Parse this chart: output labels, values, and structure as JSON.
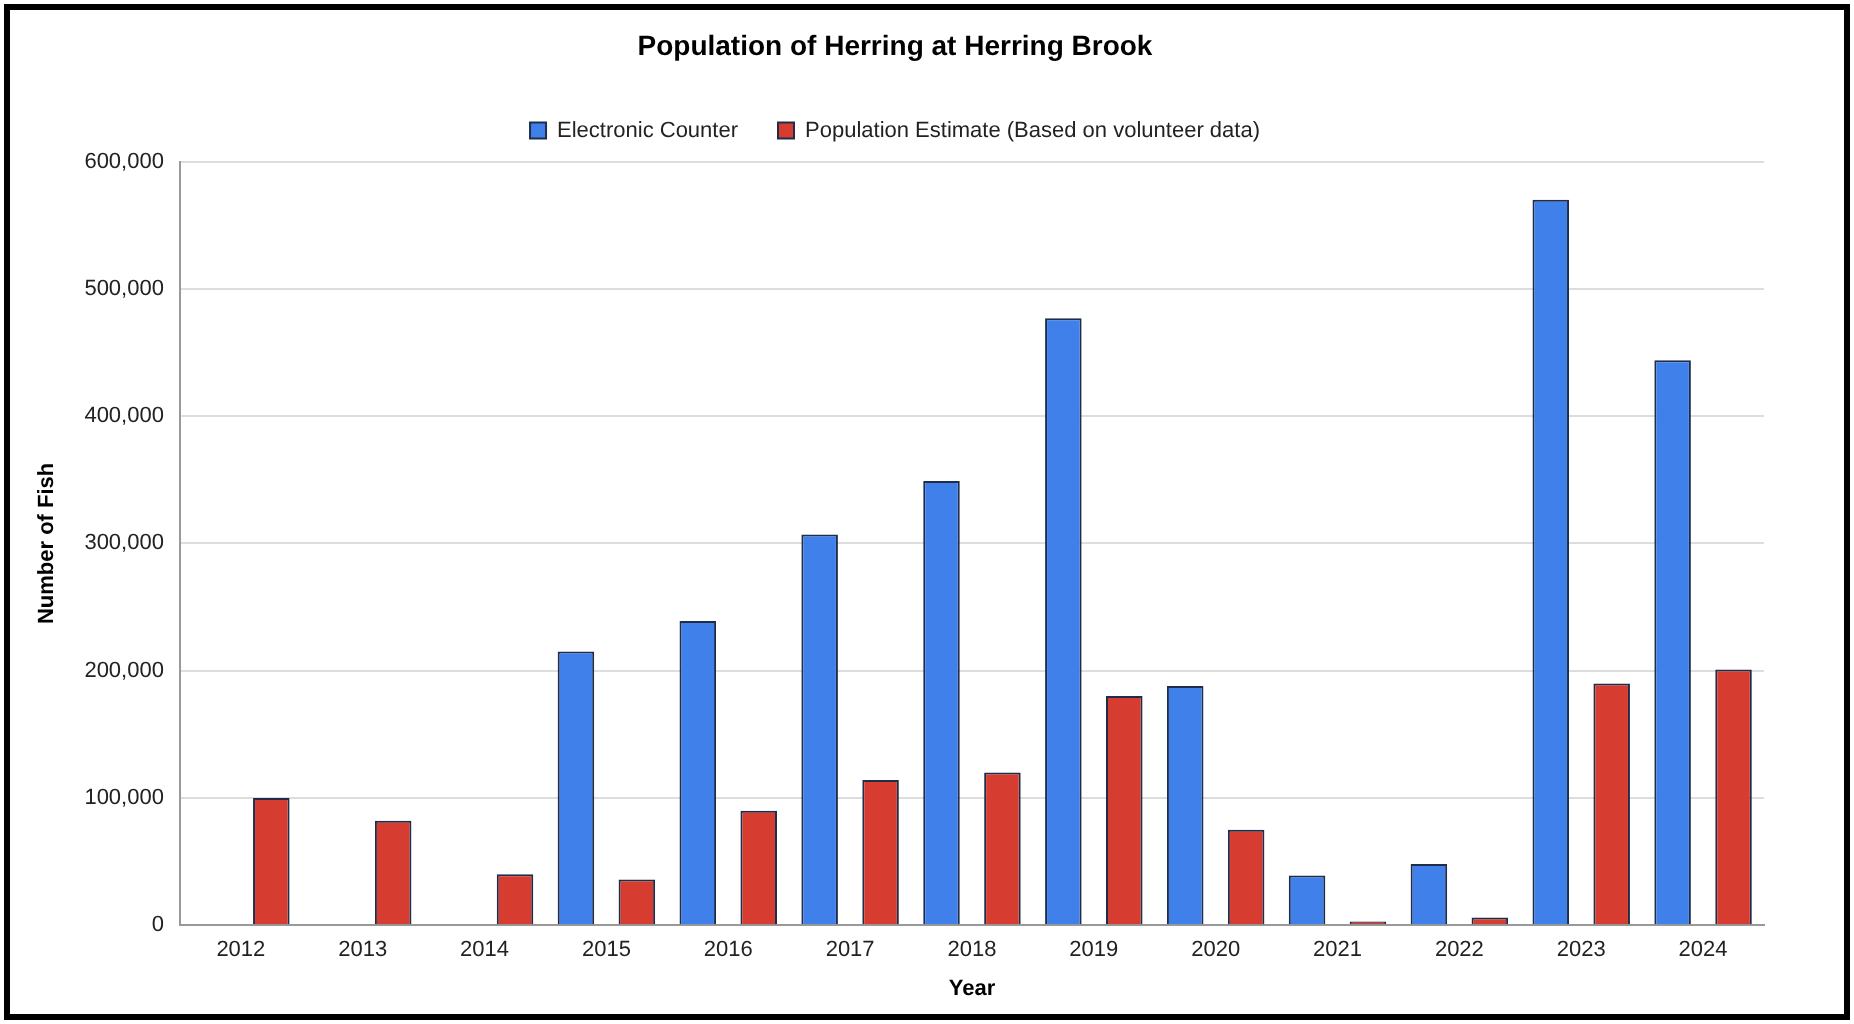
{
  "chart_data": {
    "type": "bar",
    "title": "Population of Herring at Herring Brook",
    "xlabel": "Year",
    "ylabel": "Number of Fish",
    "categories": [
      "2012",
      "2013",
      "2014",
      "2015",
      "2016",
      "2017",
      "2018",
      "2019",
      "2020",
      "2021",
      "2022",
      "2023",
      "2024"
    ],
    "series": [
      {
        "name": "Electronic Counter",
        "color": "#3f80ea",
        "values": [
          null,
          null,
          null,
          215000,
          239000,
          307000,
          349000,
          477000,
          188000,
          39000,
          48000,
          570000,
          444000
        ]
      },
      {
        "name": "Population Estimate (Based on volunteer data)",
        "color": "#d63c2f",
        "values": [
          100000,
          82000,
          40000,
          36000,
          90000,
          114000,
          120000,
          180000,
          75000,
          3000,
          6000,
          190000,
          201000
        ]
      }
    ],
    "ylim": [
      0,
      600000
    ],
    "yticks": [
      0,
      {
        "value": 100000,
        "label": "100,000"
      },
      {
        "value": 200000,
        "label": "200,000"
      },
      {
        "value": 300000,
        "label": "300,000"
      },
      {
        "value": 400000,
        "label": "400,000"
      },
      {
        "value": 500000,
        "label": "500,000"
      },
      {
        "value": 600000,
        "label": "600,000"
      }
    ],
    "grid": "y",
    "legend": "top"
  }
}
